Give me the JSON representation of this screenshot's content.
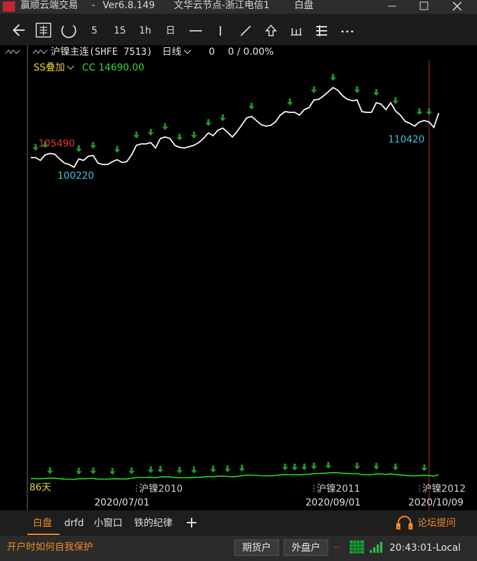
{
  "window": {
    "app": "赢顺云端交易",
    "separator": "-",
    "version": "Ver6.8.149",
    "node": "文华云节点-浙江电信1",
    "session": "白盘"
  },
  "toolbar": [
    "5",
    "15",
    "1h",
    "日"
  ],
  "chart_data": {
    "type": "line",
    "symbol": "沪镍主连(SHFE 7513)",
    "period": "日线",
    "last": "0",
    "change": "0 / 0.00%",
    "overlay": "SS叠加",
    "cc": "CC 14690.00",
    "categories": [
      null,
      null,
      null,
      null,
      null,
      null,
      null,
      null,
      null,
      null,
      null,
      null,
      null,
      null,
      null,
      null,
      null,
      null,
      null,
      "2020/07/01",
      null,
      null,
      null,
      null,
      null,
      null,
      null,
      null,
      null,
      null,
      null,
      null,
      null,
      null,
      null,
      null,
      null,
      null,
      null,
      null,
      null,
      null,
      null,
      null,
      null,
      null,
      null,
      null,
      null,
      null,
      null,
      null,
      null,
      null,
      null,
      null,
      null,
      null,
      null,
      null,
      null,
      null,
      null,
      "2020/09/01",
      null,
      null,
      null,
      null,
      null,
      null,
      null,
      null,
      null,
      null,
      null,
      null,
      null,
      null,
      null,
      null,
      null,
      null,
      null,
      null,
      null,
      "2020/10/09"
    ],
    "contracts": [
      null,
      null,
      null,
      null,
      null,
      null,
      null,
      null,
      null,
      null,
      null,
      null,
      null,
      null,
      null,
      null,
      null,
      null,
      null,
      null,
      null,
      null,
      "沪镍2010",
      null,
      null,
      null,
      null,
      null,
      null,
      null,
      null,
      null,
      null,
      null,
      null,
      null,
      null,
      null,
      null,
      null,
      null,
      null,
      null,
      null,
      null,
      null,
      null,
      null,
      null,
      null,
      null,
      null,
      null,
      null,
      null,
      null,
      null,
      null,
      null,
      "沪镍2011",
      null,
      null,
      null,
      null,
      null,
      null,
      null,
      null,
      null,
      null,
      null,
      null,
      null,
      null,
      null,
      null,
      null,
      null,
      null,
      null,
      null,
      "沪镍2012",
      null,
      null,
      null,
      null
    ],
    "values": [
      102640,
      102640,
      101950,
      103330,
      103680,
      103510,
      102300,
      101260,
      100910,
      100220,
      102300,
      101950,
      102990,
      103160,
      101260,
      100910,
      100910,
      101600,
      102120,
      101430,
      101600,
      103330,
      105750,
      106100,
      106100,
      106440,
      105060,
      107480,
      107830,
      107480,
      105750,
      105230,
      105060,
      105410,
      105750,
      106440,
      107480,
      108870,
      108170,
      109560,
      110080,
      109040,
      107830,
      109210,
      110940,
      112670,
      113020,
      111980,
      110940,
      110590,
      110770,
      111630,
      113360,
      114230,
      114050,
      114050,
      113360,
      114740,
      115260,
      117160,
      117340,
      118200,
      119240,
      120280,
      119590,
      118200,
      117340,
      116990,
      117160,
      114230,
      114050,
      114050,
      116470,
      116130,
      114740,
      116470,
      114400,
      113360,
      111800,
      111290,
      110590,
      111630,
      111980,
      111630,
      110250,
      113880
    ],
    "color": "#ffffff",
    "ylim": [
      92300,
      125100
    ],
    "annotations": [
      105490,
      100220,
      110420
    ],
    "signal_days": [
      1,
      3,
      10,
      13,
      18,
      22,
      25,
      28,
      31,
      34,
      37,
      40,
      46,
      54,
      59,
      63,
      68,
      72,
      76,
      81,
      83
    ],
    "signal_color": "#1f9a1f",
    "lower_ylim": [
      20000,
      220000
    ],
    "lower_color": "#22e022",
    "lower_signal_days": [
      4,
      10,
      13,
      17,
      21,
      25,
      27,
      31,
      34,
      38,
      41,
      44,
      53,
      55,
      57,
      59,
      62,
      68,
      72,
      76,
      82
    ],
    "days_label": "86天"
  },
  "tabs": [
    "白盘",
    "drfd",
    "小窗口",
    "铁的纪律"
  ],
  "forum": "论坛提问",
  "status": {
    "notice": "开户时如何自我保护",
    "accounts": [
      "期货户",
      "外盘户"
    ],
    "link": "--",
    "time": "20:43:01-Local"
  }
}
